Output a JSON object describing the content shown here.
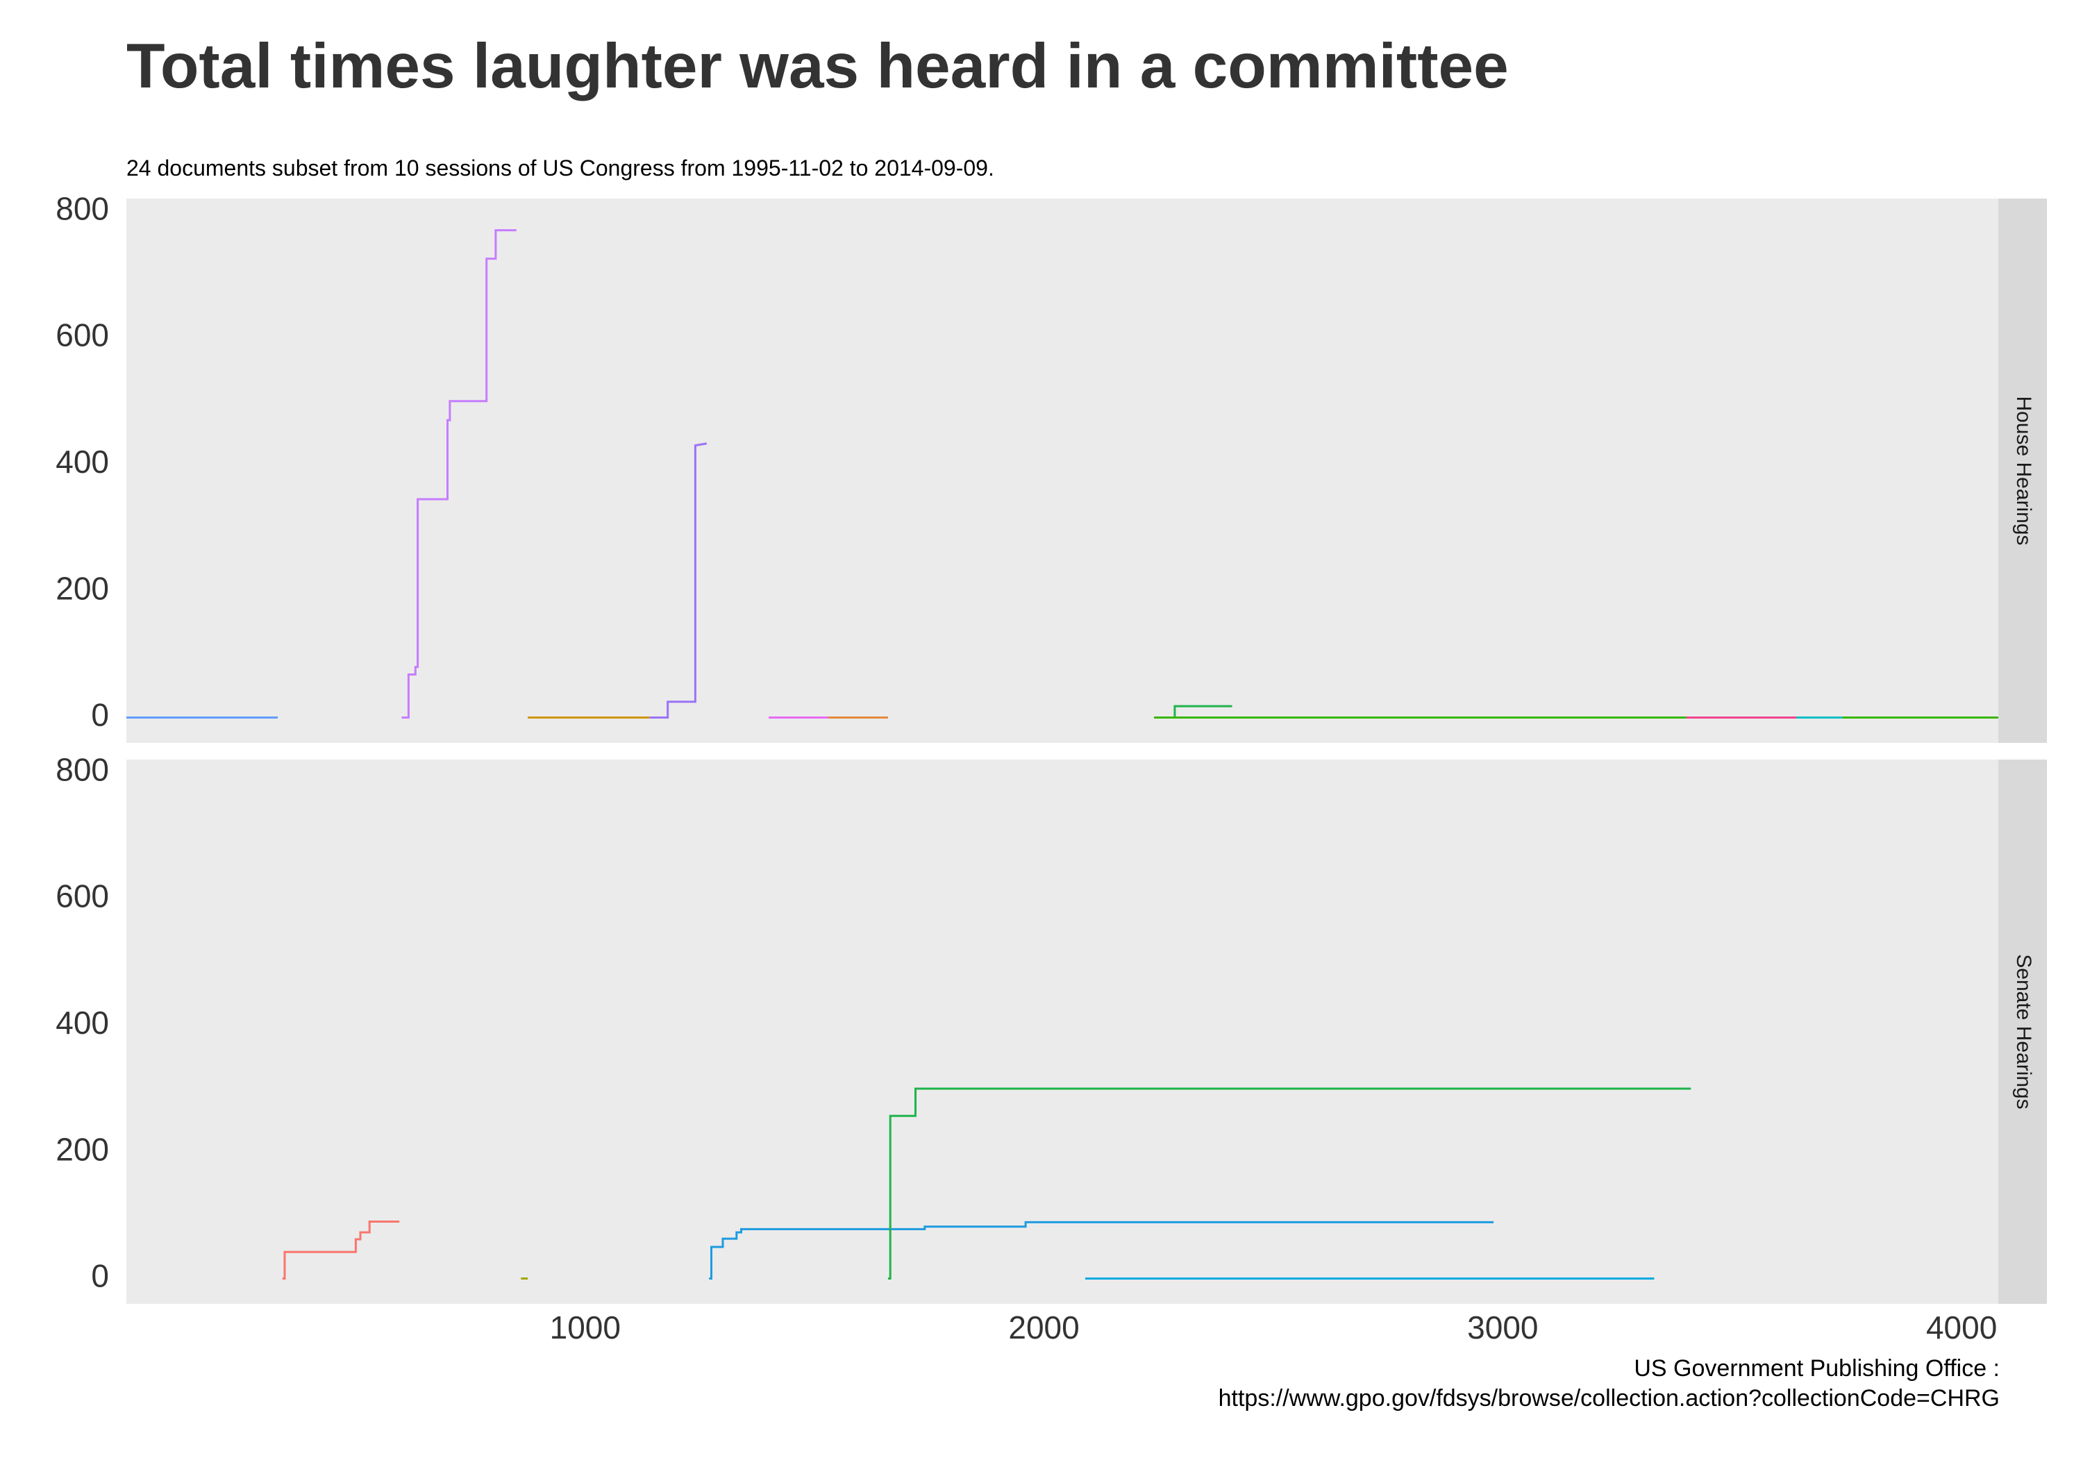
{
  "chart_data": {
    "type": "line",
    "step": true,
    "title": "Total times laughter was heard in a committee",
    "subtitle": "24 documents subset from 10 sessions of US Congress from 1995-11-02 to 2014-09-09.",
    "caption_line1": "US Government Publishing Office :",
    "caption_line2": "https://www.gpo.gov/fdsys/browse/collection.action?collectionCode=CHRG",
    "xlim": [
      0,
      4080
    ],
    "ylim": [
      -40,
      820
    ],
    "x_ticks": [
      1000,
      2000,
      3000,
      4000
    ],
    "y_ticks": [
      0,
      200,
      400,
      600,
      800
    ],
    "grid": false,
    "legend": "none",
    "facets": [
      {
        "strip_label": "House Hearings",
        "series": [
          {
            "color": "#619CFF",
            "points": [
              [
                0,
                0
              ],
              [
                330,
                0
              ]
            ]
          },
          {
            "color": "#C77CFF",
            "points": [
              [
                600,
                0
              ],
              [
                615,
                0
              ],
              [
                615,
                68
              ],
              [
                630,
                68
              ],
              [
                630,
                80
              ],
              [
                635,
                80
              ],
              [
                635,
                345
              ],
              [
                700,
                345
              ],
              [
                700,
                470
              ],
              [
                705,
                470
              ],
              [
                705,
                500
              ],
              [
                785,
                500
              ],
              [
                785,
                725
              ],
              [
                805,
                725
              ],
              [
                805,
                770
              ],
              [
                850,
                770
              ]
            ]
          },
          {
            "color": "#CD9600",
            "points": [
              [
                875,
                0
              ],
              [
                1140,
                0
              ]
            ]
          },
          {
            "color": "#9B73F5",
            "points": [
              [
                1140,
                0
              ],
              [
                1180,
                0
              ],
              [
                1180,
                25
              ],
              [
                1240,
                25
              ],
              [
                1240,
                430
              ],
              [
                1265,
                433
              ]
            ]
          },
          {
            "color": "#E76BF3",
            "points": [
              [
                1400,
                0
              ],
              [
                1530,
                0
              ]
            ]
          },
          {
            "color": "#E58A3C",
            "points": [
              [
                1530,
                0
              ],
              [
                1660,
                0
              ]
            ]
          },
          {
            "color": "#1FB34B",
            "points": [
              [
                2240,
                0
              ],
              [
                2285,
                0
              ],
              [
                2285,
                18
              ],
              [
                2410,
                18
              ]
            ]
          },
          {
            "color": "#39B600",
            "points": [
              [
                2240,
                0
              ],
              [
                3400,
                0
              ]
            ]
          },
          {
            "color": "#F0448C",
            "points": [
              [
                3400,
                0
              ],
              [
                3640,
                0
              ]
            ]
          },
          {
            "color": "#00BFC4",
            "points": [
              [
                3640,
                0
              ],
              [
                3740,
                0
              ]
            ]
          },
          {
            "color": "#39B600",
            "points": [
              [
                3740,
                0
              ],
              [
                4080,
                0
              ]
            ]
          }
        ]
      },
      {
        "strip_label": "Senate Hearings",
        "series": [
          {
            "color": "#F8766D",
            "points": [
              [
                340,
                0
              ],
              [
                345,
                0
              ],
              [
                345,
                42
              ],
              [
                500,
                42
              ],
              [
                500,
                62
              ],
              [
                510,
                62
              ],
              [
                510,
                73
              ],
              [
                530,
                73
              ],
              [
                530,
                90
              ],
              [
                595,
                90
              ]
            ]
          },
          {
            "color": "#A3A500",
            "points": [
              [
                860,
                0
              ],
              [
                875,
                0
              ]
            ]
          },
          {
            "color": "#1E9BE0",
            "points": [
              [
                1270,
                0
              ],
              [
                1275,
                0
              ],
              [
                1275,
                50
              ],
              [
                1300,
                50
              ],
              [
                1300,
                63
              ],
              [
                1330,
                63
              ],
              [
                1330,
                73
              ],
              [
                1340,
                73
              ],
              [
                1340,
                78
              ],
              [
                1740,
                78
              ],
              [
                1740,
                82
              ],
              [
                1960,
                82
              ],
              [
                1960,
                89
              ],
              [
                2980,
                89
              ]
            ]
          },
          {
            "color": "#1FB34B",
            "points": [
              [
                1660,
                0
              ],
              [
                1665,
                0
              ],
              [
                1665,
                257
              ],
              [
                1720,
                257
              ],
              [
                1720,
                300
              ],
              [
                3410,
                300
              ]
            ]
          },
          {
            "color": "#00A9E0",
            "points": [
              [
                2090,
                0
              ],
              [
                3330,
                0
              ]
            ]
          }
        ]
      }
    ]
  },
  "colors": {
    "panel_bg": "#EBEBEB",
    "strip_bg": "#D9D9D9",
    "tick_text": "#333333",
    "title_text": "#333333"
  }
}
